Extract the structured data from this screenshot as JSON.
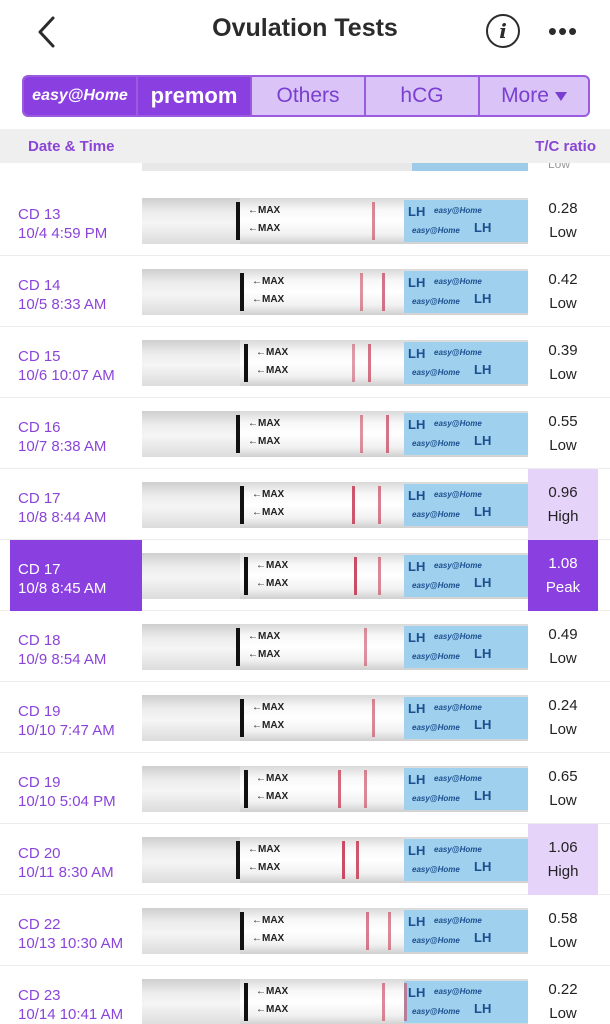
{
  "header": {
    "title": "Ovulation Tests",
    "back_icon": "chevron-left-icon",
    "info_label": "i",
    "more_label": "•••"
  },
  "tabs": [
    {
      "label": "easy@Home",
      "active": true
    },
    {
      "label": "premom",
      "active": true
    },
    {
      "label": "Others",
      "active": false
    },
    {
      "label": "hCG",
      "active": false
    },
    {
      "label": "More",
      "active": false
    }
  ],
  "columns": {
    "date": "Date & Time",
    "ratio": "T/C ratio"
  },
  "strip_text": {
    "max": "←MAX",
    "lh": "LH",
    "brand": "easy@Home"
  },
  "rows": [
    {
      "cd": "CD 13",
      "datetime": "10/4 4:59 PM",
      "value": "0.28",
      "level": "Low"
    },
    {
      "cd": "CD 14",
      "datetime": "10/5 8:33 AM",
      "value": "0.42",
      "level": "Low"
    },
    {
      "cd": "CD 15",
      "datetime": "10/6 10:07 AM",
      "value": "0.39",
      "level": "Low"
    },
    {
      "cd": "CD 16",
      "datetime": "10/7 8:38 AM",
      "value": "0.55",
      "level": "Low"
    },
    {
      "cd": "CD 17",
      "datetime": "10/8 8:44 AM",
      "value": "0.96",
      "level": "High"
    },
    {
      "cd": "CD 17",
      "datetime": "10/8 8:45 AM",
      "value": "1.08",
      "level": "Peak"
    },
    {
      "cd": "CD 18",
      "datetime": "10/9 8:54 AM",
      "value": "0.49",
      "level": "Low"
    },
    {
      "cd": "CD 19",
      "datetime": "10/10 7:47 AM",
      "value": "0.24",
      "level": "Low"
    },
    {
      "cd": "CD 19",
      "datetime": "10/10 5:04 PM",
      "value": "0.65",
      "level": "Low"
    },
    {
      "cd": "CD 20",
      "datetime": "10/11 8:30 AM",
      "value": "1.06",
      "level": "High"
    },
    {
      "cd": "CD 22",
      "datetime": "10/13 10:30 AM",
      "value": "0.58",
      "level": "Low"
    },
    {
      "cd": "CD 23",
      "datetime": "10/14 10:41 AM",
      "value": "0.22",
      "level": "Low"
    }
  ],
  "partial_row_level": "Low",
  "colors": {
    "accent": "#8a3fe0",
    "accent_light": "#e6d3fa",
    "test_line": "#c53a54"
  }
}
